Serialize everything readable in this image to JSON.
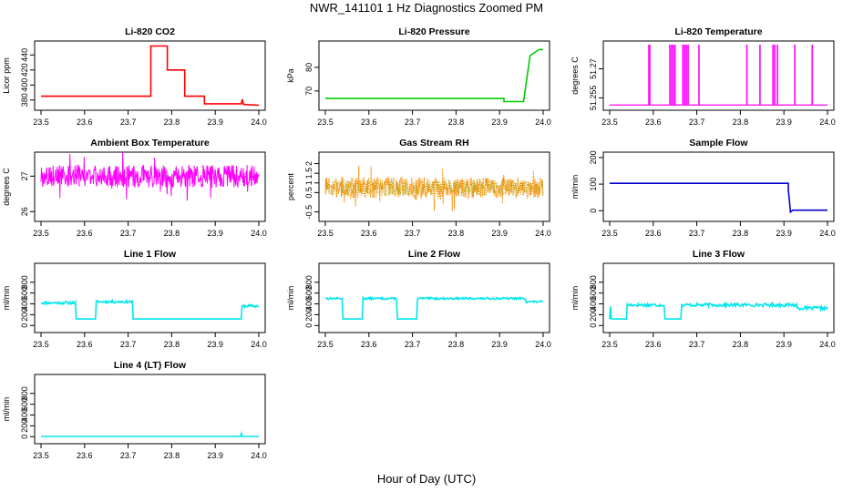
{
  "title": "NWR_141101  1 Hz Diagnostics Zoomed PM",
  "xlabel": "Hour of Day (UTC)",
  "chart_data": [
    {
      "type": "line",
      "title": "Li-820 CO2",
      "ylabel": "Licor ppm",
      "color": "#ff0000",
      "xlim": [
        23.5,
        24.0
      ],
      "ylim": [
        370,
        455
      ],
      "xticks": [
        23.5,
        23.6,
        23.7,
        23.8,
        23.9,
        24.0
      ],
      "yticks": [
        380,
        400,
        420,
        440
      ],
      "x": [
        23.5,
        23.752,
        23.752,
        23.79,
        23.79,
        23.83,
        23.83,
        23.875,
        23.875,
        23.96,
        23.962,
        23.965,
        23.97,
        24.0
      ],
      "y": [
        385,
        385,
        452,
        452,
        420,
        420,
        385,
        385,
        375,
        375,
        381,
        374,
        374,
        373
      ]
    },
    {
      "type": "line",
      "title": "Li-820 Pressure",
      "ylabel": "kPa",
      "color": "#00cc00",
      "xlim": [
        23.5,
        24.0
      ],
      "ylim": [
        63,
        90
      ],
      "xticks": [
        23.5,
        23.6,
        23.7,
        23.8,
        23.9,
        24.0
      ],
      "yticks": [
        70,
        80
      ],
      "x": [
        23.5,
        23.91,
        23.91,
        23.955,
        23.97,
        23.99,
        24.0
      ],
      "y": [
        66.8,
        66.8,
        65.5,
        65.5,
        85,
        87.5,
        87.5
      ]
    },
    {
      "type": "line",
      "title": "Li-820 Temperature",
      "ylabel": "degrees C",
      "color": "#ff00ff",
      "xlim": [
        23.5,
        24.0
      ],
      "ylim": [
        51.25,
        51.283
      ],
      "xticks": [
        23.5,
        23.6,
        23.7,
        23.8,
        23.9,
        24.0
      ],
      "yticks": [
        51.255,
        51.27
      ],
      "baseline": 51.2513,
      "spike_top": 51.2825,
      "spikes": [
        23.59,
        23.592,
        23.638,
        23.642,
        23.646,
        23.65,
        23.668,
        23.672,
        23.676,
        23.68,
        23.705,
        23.815,
        23.845,
        23.875,
        23.879,
        23.885,
        23.925,
        23.965
      ]
    },
    {
      "type": "line",
      "title": "Ambient Box Temperature",
      "ylabel": "degrees C",
      "color": "#ff00ff",
      "xlim": [
        23.5,
        24.0
      ],
      "ylim": [
        25.8,
        27.6
      ],
      "xticks": [
        23.5,
        23.6,
        23.7,
        23.8,
        23.9,
        24.0
      ],
      "yticks": [
        26.0,
        27.0
      ],
      "noise": {
        "mean": 27.0,
        "amp": 0.32,
        "seed": 3
      }
    },
    {
      "type": "line",
      "title": "Gas Stream RH",
      "ylabel": "percent",
      "color": "#ff8c00",
      "color2": "#b8a000",
      "xlim": [
        23.5,
        24.0
      ],
      "ylim": [
        -0.85,
        2.45
      ],
      "xticks": [
        23.5,
        23.6,
        23.7,
        23.8,
        23.9,
        24.0
      ],
      "yticks": [
        -0.5,
        0.5,
        1.0,
        1.5,
        2.0
      ],
      "noise": {
        "mean": 0.75,
        "amp": 0.55,
        "seed": 7
      }
    },
    {
      "type": "line",
      "title": "Sample Flow",
      "ylabel": "ml/min",
      "color": "#0000cc",
      "xlim": [
        23.5,
        24.0
      ],
      "ylim": [
        -30,
        210
      ],
      "xticks": [
        23.5,
        23.6,
        23.7,
        23.8,
        23.9,
        24.0
      ],
      "yticks": [
        0,
        100,
        200
      ],
      "x": [
        23.5,
        23.91,
        23.91,
        23.915,
        23.92,
        24.0
      ],
      "y": [
        103,
        103,
        80,
        -5,
        2,
        2
      ]
    },
    {
      "type": "line",
      "title": "Line 1 Flow",
      "ylabel": "ml/min",
      "color": "#00e5ee",
      "xlim": [
        23.5,
        24.0
      ],
      "ylim": [
        -80,
        1100
      ],
      "xticks": [
        23.5,
        23.6,
        23.7,
        23.8,
        23.9,
        24.0
      ],
      "yticks": [
        0,
        200,
        400,
        600,
        800
      ],
      "x": [
        23.5,
        23.58,
        23.58,
        23.625,
        23.625,
        23.71,
        23.71,
        23.96,
        23.96,
        24.0
      ],
      "y": [
        420,
        420,
        120,
        120,
        440,
        440,
        120,
        120,
        360,
        360
      ],
      "noise": {
        "mean": 0,
        "amp": 25,
        "seed": 11
      }
    },
    {
      "type": "line",
      "title": "Line 2 Flow",
      "ylabel": "ml/min",
      "color": "#00e5ee",
      "xlim": [
        23.5,
        24.0
      ],
      "ylim": [
        -80,
        1100
      ],
      "xticks": [
        23.5,
        23.6,
        23.7,
        23.8,
        23.9,
        24.0
      ],
      "yticks": [
        0,
        200,
        400,
        600,
        800
      ],
      "x": [
        23.5,
        23.54,
        23.54,
        23.585,
        23.585,
        23.665,
        23.665,
        23.71,
        23.71,
        23.96,
        23.96,
        24.0
      ],
      "y": [
        500,
        500,
        120,
        120,
        500,
        500,
        120,
        120,
        500,
        500,
        440,
        440
      ],
      "noise": {
        "mean": 0,
        "amp": 18,
        "seed": 13
      }
    },
    {
      "type": "line",
      "title": "Line 3 Flow",
      "ylabel": "ml/min",
      "color": "#00e5ee",
      "xlim": [
        23.5,
        24.0
      ],
      "ylim": [
        -80,
        1100
      ],
      "xticks": [
        23.5,
        23.6,
        23.7,
        23.8,
        23.9,
        24.0
      ],
      "yticks": [
        0,
        200,
        400,
        600,
        800
      ],
      "x": [
        23.5,
        23.502,
        23.502,
        23.54,
        23.54,
        23.625,
        23.625,
        23.665,
        23.665,
        23.93,
        23.93,
        24.0
      ],
      "y": [
        120,
        380,
        120,
        120,
        380,
        380,
        120,
        120,
        380,
        380,
        320,
        320
      ],
      "noise": {
        "mean": 0,
        "amp": 30,
        "seed": 17
      }
    },
    {
      "type": "line",
      "title": "Line 4 (LT) Flow",
      "ylabel": "ml/min",
      "color": "#00e5ee",
      "xlim": [
        23.5,
        24.0
      ],
      "ylim": [
        -80,
        1100
      ],
      "xticks": [
        23.5,
        23.6,
        23.7,
        23.8,
        23.9,
        24.0
      ],
      "yticks": [
        0,
        200,
        400,
        600,
        800
      ],
      "x": [
        23.5,
        23.958,
        23.96,
        23.962,
        24.0
      ],
      "y": [
        5,
        5,
        60,
        5,
        5
      ]
    }
  ]
}
